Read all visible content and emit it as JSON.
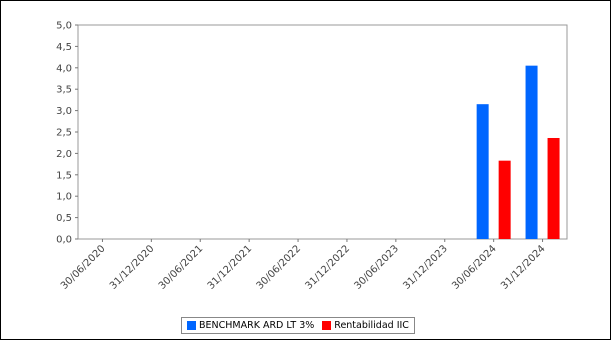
{
  "chart_data": {
    "type": "bar",
    "categories": [
      "30/06/2020",
      "31/12/2020",
      "30/06/2021",
      "31/12/2021",
      "30/06/2022",
      "31/12/2022",
      "30/06/2023",
      "31/12/2023",
      "30/06/2024",
      "31/12/2024"
    ],
    "series": [
      {
        "name": "BENCHMARK ARD LT 3%",
        "color": "#0066ff",
        "values": [
          null,
          null,
          null,
          null,
          null,
          null,
          null,
          null,
          3.15,
          4.05
        ]
      },
      {
        "name": "Rentabilidad IIC",
        "color": "#ff0000",
        "values": [
          null,
          null,
          null,
          null,
          null,
          null,
          null,
          null,
          1.83,
          2.36
        ]
      }
    ],
    "ylim": [
      0,
      5
    ],
    "yticks": [
      "0,0",
      "0,5",
      "1,0",
      "1,5",
      "2,0",
      "2,5",
      "3,0",
      "3,5",
      "4,0",
      "4,5",
      "5,0"
    ],
    "legend_position": "bottom",
    "grid": false
  }
}
